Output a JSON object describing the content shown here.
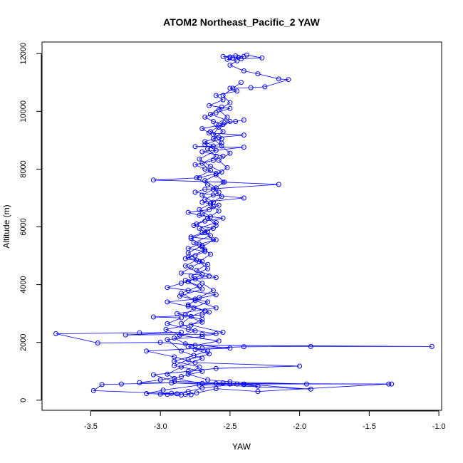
{
  "chart_data": {
    "type": "line",
    "title": "ATOM2 Northeast_Pacific_2 YAW",
    "xlabel": "YAW",
    "ylabel": "Altitude (m)",
    "xlim": [
      -3.85,
      -0.98
    ],
    "ylim": [
      -350,
      12400
    ],
    "x_ticks": [
      -3.5,
      -3.0,
      -2.5,
      -2.0,
      -1.5,
      -1.0
    ],
    "y_ticks": [
      0,
      2000,
      4000,
      6000,
      8000,
      10000,
      12000
    ],
    "x_tick_labels": [
      "-3.5",
      "-3.0",
      "-2.5",
      "-2.0",
      "-1.5",
      "-1.0"
    ],
    "y_tick_labels": [
      "0",
      "2000",
      "4000",
      "6000",
      "8000",
      "10000",
      "12000"
    ],
    "grid": false,
    "marker": "open-circle",
    "series_color": "#0000ff",
    "series": [
      {
        "points": [
          [
            -2.85,
            180
          ],
          [
            -2.95,
            200
          ],
          [
            -3.1,
            230
          ],
          [
            -2.98,
            350
          ],
          [
            -2.72,
            520
          ],
          [
            -2.5,
            560
          ],
          [
            -2.4,
            540
          ],
          [
            -2.3,
            480
          ],
          [
            -2.55,
            600
          ],
          [
            -2.9,
            650
          ],
          [
            -3.05,
            880
          ],
          [
            -2.8,
            1000
          ],
          [
            -2.6,
            1100
          ],
          [
            -2.0,
            1180
          ],
          [
            -2.75,
            1300
          ],
          [
            -2.9,
            1500
          ],
          [
            -3.1,
            1700
          ],
          [
            -2.7,
            1800
          ],
          [
            -2.4,
            1850
          ],
          [
            -1.92,
            1860
          ],
          [
            -1.05,
            1860
          ],
          [
            -2.75,
            1900
          ],
          [
            -3.0,
            2000
          ],
          [
            -3.45,
            1980
          ],
          [
            -3.75,
            2300
          ],
          [
            -3.15,
            2330
          ],
          [
            -2.85,
            2350
          ],
          [
            -3.25,
            2260
          ],
          [
            -2.7,
            2280
          ],
          [
            -2.6,
            2300
          ],
          [
            -2.8,
            2450
          ],
          [
            -2.95,
            2650
          ],
          [
            -2.85,
            2850
          ],
          [
            -3.05,
            2880
          ],
          [
            -2.7,
            2950
          ],
          [
            -2.65,
            3050
          ],
          [
            -2.8,
            3250
          ],
          [
            -2.95,
            3400
          ],
          [
            -2.75,
            3500
          ],
          [
            -2.6,
            3650
          ],
          [
            -2.8,
            3800
          ],
          [
            -2.95,
            3900
          ],
          [
            -2.85,
            4050
          ],
          [
            -2.75,
            4200
          ],
          [
            -2.65,
            4300
          ],
          [
            -2.85,
            4400
          ],
          [
            -2.78,
            4600
          ],
          [
            -2.7,
            4800
          ],
          [
            -2.82,
            4900
          ],
          [
            -2.75,
            5000
          ],
          [
            -2.68,
            5150
          ],
          [
            -2.8,
            5250
          ],
          [
            -2.72,
            5400
          ],
          [
            -2.6,
            5550
          ],
          [
            -2.78,
            5650
          ],
          [
            -2.7,
            5800
          ],
          [
            -2.62,
            5950
          ],
          [
            -2.76,
            6050
          ],
          [
            -2.68,
            6200
          ],
          [
            -2.55,
            6300
          ],
          [
            -2.72,
            6400
          ],
          [
            -2.8,
            6500
          ],
          [
            -2.65,
            6600
          ],
          [
            -2.58,
            6750
          ],
          [
            -2.7,
            6850
          ],
          [
            -2.4,
            7000
          ],
          [
            -2.62,
            7100
          ],
          [
            -2.75,
            7200
          ],
          [
            -2.68,
            7300
          ],
          [
            -2.15,
            7470
          ],
          [
            -2.55,
            7550
          ],
          [
            -3.05,
            7620
          ],
          [
            -2.72,
            7700
          ],
          [
            -2.6,
            7850
          ],
          [
            -2.68,
            8000
          ],
          [
            -2.75,
            8150
          ],
          [
            -2.62,
            8300
          ],
          [
            -2.55,
            8450
          ],
          [
            -2.7,
            8600
          ],
          [
            -2.4,
            8760
          ],
          [
            -2.75,
            8780
          ],
          [
            -2.62,
            8800
          ],
          [
            -2.68,
            8950
          ],
          [
            -2.58,
            9100
          ],
          [
            -2.4,
            9180
          ],
          [
            -2.65,
            9250
          ],
          [
            -2.7,
            9400
          ],
          [
            -2.55,
            9550
          ],
          [
            -2.62,
            9650
          ],
          [
            -2.68,
            9800
          ],
          [
            -2.6,
            9950
          ],
          [
            -2.5,
            10100
          ],
          [
            -2.65,
            10200
          ],
          [
            -2.55,
            10400
          ],
          [
            -2.6,
            10550
          ],
          [
            -2.45,
            10700
          ],
          [
            -2.5,
            10800
          ],
          [
            -2.35,
            10820
          ],
          [
            -2.25,
            10850
          ],
          [
            -2.08,
            11100
          ],
          [
            -2.15,
            11120
          ],
          [
            -2.3,
            11300
          ],
          [
            -2.4,
            11400
          ],
          [
            -2.5,
            11600
          ],
          [
            -2.45,
            11750
          ],
          [
            -2.52,
            11800
          ],
          [
            -2.48,
            11850
          ],
          [
            -2.44,
            11870
          ],
          [
            -2.4,
            11900
          ],
          [
            -2.46,
            11920
          ],
          [
            -2.55,
            11900
          ],
          [
            -2.5,
            11880
          ],
          [
            -2.42,
            11820
          ],
          [
            -2.27,
            11850
          ],
          [
            -2.38,
            11950
          ]
        ]
      },
      {
        "points": [
          [
            -3.0,
            210
          ],
          [
            -2.92,
            240
          ],
          [
            -2.8,
            300
          ],
          [
            -2.7,
            420
          ],
          [
            -2.45,
            560
          ],
          [
            -1.34,
            560
          ],
          [
            -2.6,
            580
          ],
          [
            -3.15,
            610
          ],
          [
            -3.0,
            700
          ],
          [
            -2.85,
            820
          ],
          [
            -2.7,
            1000
          ],
          [
            -2.9,
            1200
          ],
          [
            -2.8,
            1400
          ],
          [
            -2.65,
            1600
          ],
          [
            -2.75,
            1750
          ],
          [
            -2.5,
            1800
          ],
          [
            -2.82,
            1950
          ],
          [
            -2.9,
            2150
          ],
          [
            -2.75,
            2400
          ],
          [
            -2.85,
            2650
          ],
          [
            -2.78,
            2900
          ],
          [
            -2.68,
            3100
          ],
          [
            -2.8,
            3300
          ],
          [
            -2.72,
            3550
          ],
          [
            -2.62,
            3800
          ],
          [
            -2.7,
            4050
          ],
          [
            -2.78,
            4300
          ],
          [
            -2.66,
            4550
          ],
          [
            -2.72,
            4800
          ],
          [
            -2.64,
            5050
          ],
          [
            -2.7,
            5300
          ],
          [
            -2.62,
            5550
          ],
          [
            -2.68,
            5800
          ],
          [
            -2.6,
            6050
          ],
          [
            -2.66,
            6300
          ],
          [
            -2.58,
            6550
          ],
          [
            -2.64,
            6800
          ],
          [
            -2.56,
            7050
          ],
          [
            -2.62,
            7300
          ],
          [
            -2.54,
            7550
          ],
          [
            -2.6,
            7800
          ],
          [
            -2.52,
            8050
          ],
          [
            -2.58,
            8300
          ],
          [
            -2.5,
            8550
          ],
          [
            -2.56,
            8800
          ],
          [
            -2.62,
            9050
          ],
          [
            -2.55,
            9300
          ],
          [
            -2.6,
            9550
          ],
          [
            -2.52,
            9800
          ],
          [
            -2.58,
            10050
          ],
          [
            -2.5,
            10300
          ],
          [
            -2.55,
            10550
          ],
          [
            -2.48,
            10800
          ],
          [
            -2.42,
            11000
          ]
        ]
      },
      {
        "points": [
          [
            -2.78,
            190
          ],
          [
            -2.88,
            220
          ],
          [
            -3.48,
            330
          ],
          [
            -3.42,
            540
          ],
          [
            -3.28,
            560
          ],
          [
            -2.92,
            600
          ],
          [
            -1.92,
            380
          ],
          [
            -2.4,
            560
          ],
          [
            -2.7,
            580
          ],
          [
            -2.9,
            750
          ],
          [
            -2.95,
            900
          ],
          [
            -2.85,
            1150
          ],
          [
            -2.7,
            1450
          ],
          [
            -2.85,
            1700
          ],
          [
            -2.95,
            2100
          ],
          [
            -2.7,
            2200
          ],
          [
            -2.55,
            2350
          ],
          [
            -2.78,
            2600
          ],
          [
            -2.7,
            2800
          ],
          [
            -2.88,
            3000
          ],
          [
            -2.6,
            3200
          ],
          [
            -2.75,
            3450
          ],
          [
            -2.85,
            3700
          ],
          [
            -2.72,
            3950
          ],
          [
            -2.82,
            4150
          ],
          [
            -2.6,
            4250
          ],
          [
            -2.74,
            4500
          ],
          [
            -2.66,
            4700
          ],
          [
            -2.8,
            4950
          ],
          [
            -2.68,
            5200
          ],
          [
            -2.76,
            5450
          ],
          [
            -2.64,
            5700
          ],
          [
            -2.72,
            5950
          ],
          [
            -2.6,
            6150
          ],
          [
            -2.7,
            6450
          ],
          [
            -2.62,
            6700
          ],
          [
            -2.68,
            6950
          ],
          [
            -2.58,
            7200
          ],
          [
            -2.66,
            7450
          ],
          [
            -2.74,
            7700
          ],
          [
            -2.64,
            7950
          ],
          [
            -2.7,
            8200
          ],
          [
            -2.6,
            8450
          ],
          [
            -2.66,
            8700
          ],
          [
            -2.56,
            8900
          ],
          [
            -2.62,
            9200
          ],
          [
            -2.58,
            9450
          ],
          [
            -2.5,
            9650
          ],
          [
            -2.64,
            9900
          ],
          [
            -2.56,
            10150
          ]
        ]
      },
      {
        "points": [
          [
            -2.82,
            200
          ],
          [
            -2.74,
            250
          ],
          [
            -2.6,
            400
          ],
          [
            -2.3,
            300
          ],
          [
            -1.36,
            560
          ],
          [
            -1.95,
            560
          ],
          [
            -2.5,
            640
          ],
          [
            -2.66,
            700
          ],
          [
            -2.8,
            900
          ],
          [
            -2.72,
            1150
          ],
          [
            -2.9,
            1350
          ],
          [
            -2.76,
            1550
          ],
          [
            -2.66,
            1700
          ],
          [
            -2.8,
            1850
          ],
          [
            -2.58,
            2050
          ],
          [
            -2.86,
            2250
          ],
          [
            -2.96,
            2450
          ],
          [
            -2.7,
            2700
          ],
          [
            -2.82,
            2950
          ],
          [
            -2.76,
            3200
          ],
          [
            -2.66,
            3400
          ],
          [
            -2.86,
            3600
          ],
          [
            -2.7,
            3850
          ],
          [
            -2.8,
            4100
          ],
          [
            -2.7,
            4350
          ],
          [
            -2.82,
            4650
          ],
          [
            -2.74,
            4850
          ],
          [
            -2.8,
            5100
          ],
          [
            -2.7,
            5350
          ],
          [
            -2.78,
            5600
          ],
          [
            -2.66,
            5850
          ],
          [
            -2.74,
            6100
          ],
          [
            -2.64,
            6350
          ],
          [
            -2.72,
            6600
          ],
          [
            -2.62,
            6850
          ],
          [
            -2.7,
            7100
          ],
          [
            -2.6,
            7350
          ],
          [
            -2.68,
            7600
          ],
          [
            -2.56,
            7900
          ],
          [
            -2.64,
            8100
          ],
          [
            -2.72,
            8350
          ],
          [
            -2.6,
            8650
          ],
          [
            -2.68,
            8850
          ],
          [
            -2.56,
            9050
          ],
          [
            -2.64,
            9300
          ],
          [
            -2.54,
            9600
          ],
          [
            -2.46,
            9650
          ],
          [
            -2.4,
            9700
          ]
        ]
      }
    ]
  }
}
